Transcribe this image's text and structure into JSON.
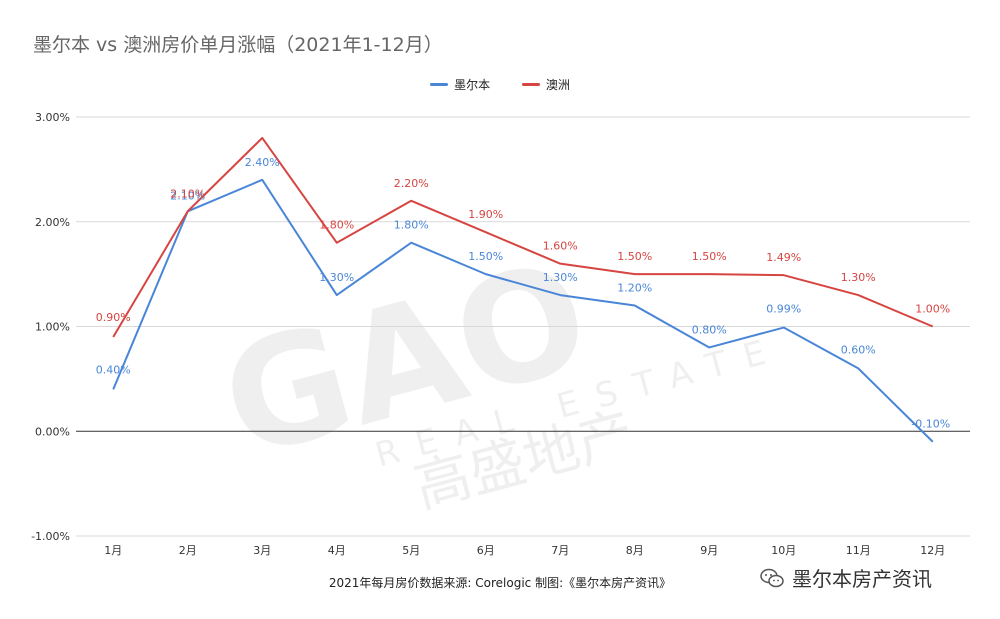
{
  "title": "墨尔本 vs 澳洲房价单月涨幅（2021年1-12月）",
  "source": "2021年每月房价数据来源: Corelogic 制图:《墨尔本房产资讯》",
  "brand": "墨尔本房产资讯",
  "brand_icon": "wechat-icon",
  "watermark": {
    "text_main": "GAO",
    "text_sub": "REAL ESTATE",
    "text_cn": "高盛地产"
  },
  "colors": {
    "melbourne": "#4a86d8",
    "australia": "#d64541",
    "zero_line": "#333333",
    "grid": "#d9d9d9"
  },
  "chart_data": {
    "type": "line",
    "title": "墨尔本 vs 澳洲房价单月涨幅（2021年1-12月）",
    "categories": [
      "1月",
      "2月",
      "3月",
      "4月",
      "5月",
      "6月",
      "7月",
      "8月",
      "9月",
      "10月",
      "11月",
      "12月"
    ],
    "series": [
      {
        "name": "墨尔本",
        "values": [
          0.4,
          2.1,
          2.4,
          1.3,
          1.8,
          1.5,
          1.3,
          1.2,
          0.8,
          0.99,
          0.6,
          -0.1
        ],
        "labels": [
          "0.40%",
          "2.10%",
          "2.40%",
          "1.30%",
          "1.80%",
          "1.50%",
          "1.30%",
          "1.20%",
          "0.80%",
          "0.99%",
          "0.60%",
          "-0.10%"
        ]
      },
      {
        "name": "澳洲",
        "values": [
          0.9,
          2.1,
          2.8,
          1.8,
          2.2,
          1.9,
          1.6,
          1.5,
          1.5,
          1.49,
          1.3,
          1.0
        ],
        "labels": [
          "0.90%",
          "2.10%",
          "",
          "1.80%",
          "2.20%",
          "1.90%",
          "1.60%",
          "1.50%",
          "1.50%",
          "1.49%",
          "1.30%",
          "1.00%"
        ]
      }
    ],
    "y_ticks": [
      "3.00%",
      "2.00%",
      "1.00%",
      "0.00%",
      "-1.00%"
    ],
    "ylim": [
      -1.0,
      3.0
    ],
    "grid": true,
    "legend_position": "top-center",
    "xlabel": "",
    "ylabel": ""
  }
}
